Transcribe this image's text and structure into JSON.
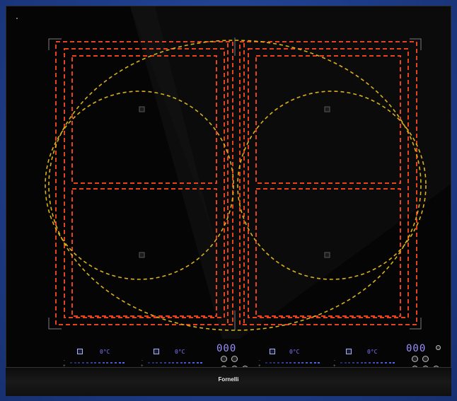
{
  "brand": "Fornelli",
  "controls": {
    "zone_panels": [
      {
        "temp": "0°C"
      },
      {
        "temp": "0°C"
      },
      {
        "temp": "0°C"
      },
      {
        "temp": "0°C"
      }
    ],
    "timer_left": "000",
    "timer_right": "000",
    "slider_marks": [
      "-",
      "+"
    ]
  },
  "colors": {
    "hob_glass": "#050505",
    "zone_rect": "#e8421d",
    "zone_circle": "#d9b21a",
    "display": "#7b7bff",
    "background": "#1f3f8a"
  },
  "icons": [
    "power-led",
    "zone-sensor-marker",
    "control-button"
  ]
}
